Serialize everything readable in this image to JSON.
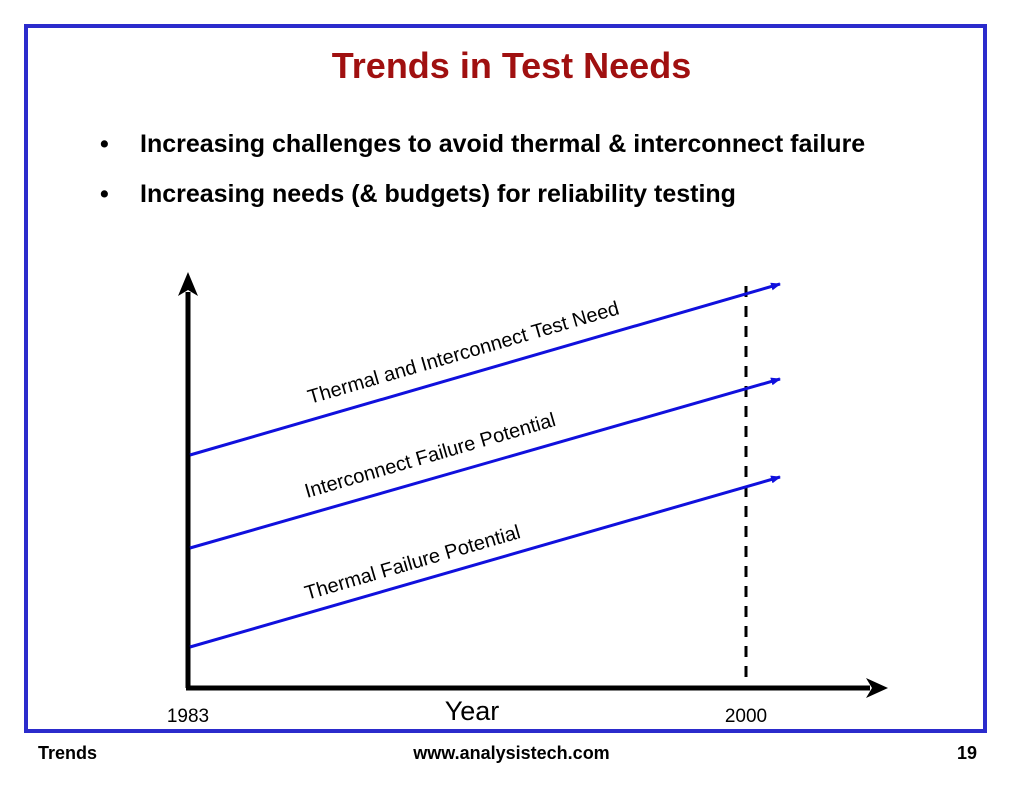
{
  "slide": {
    "title": "Trends in Test Needs",
    "bullets": [
      "Increasing challenges to avoid thermal & interconnect failure",
      "Increasing needs (& budgets) for reliability testing"
    ],
    "bullet_char": "•"
  },
  "diagram": {
    "x_axis_label": "Year",
    "x_start_label": "1983",
    "x_marker_label": "2000",
    "lines": [
      {
        "label": "Thermal and Interconnect Test Need"
      },
      {
        "label": "Interconnect Failure Potential"
      },
      {
        "label": "Thermal Failure Potential"
      }
    ],
    "colors": {
      "trend_line": "#1010dd",
      "axis": "#000000",
      "border": "#2b2bcc",
      "title": "#a01010"
    }
  },
  "footer": {
    "left": "Trends",
    "center": "www.analysistech.com",
    "page": "19"
  }
}
